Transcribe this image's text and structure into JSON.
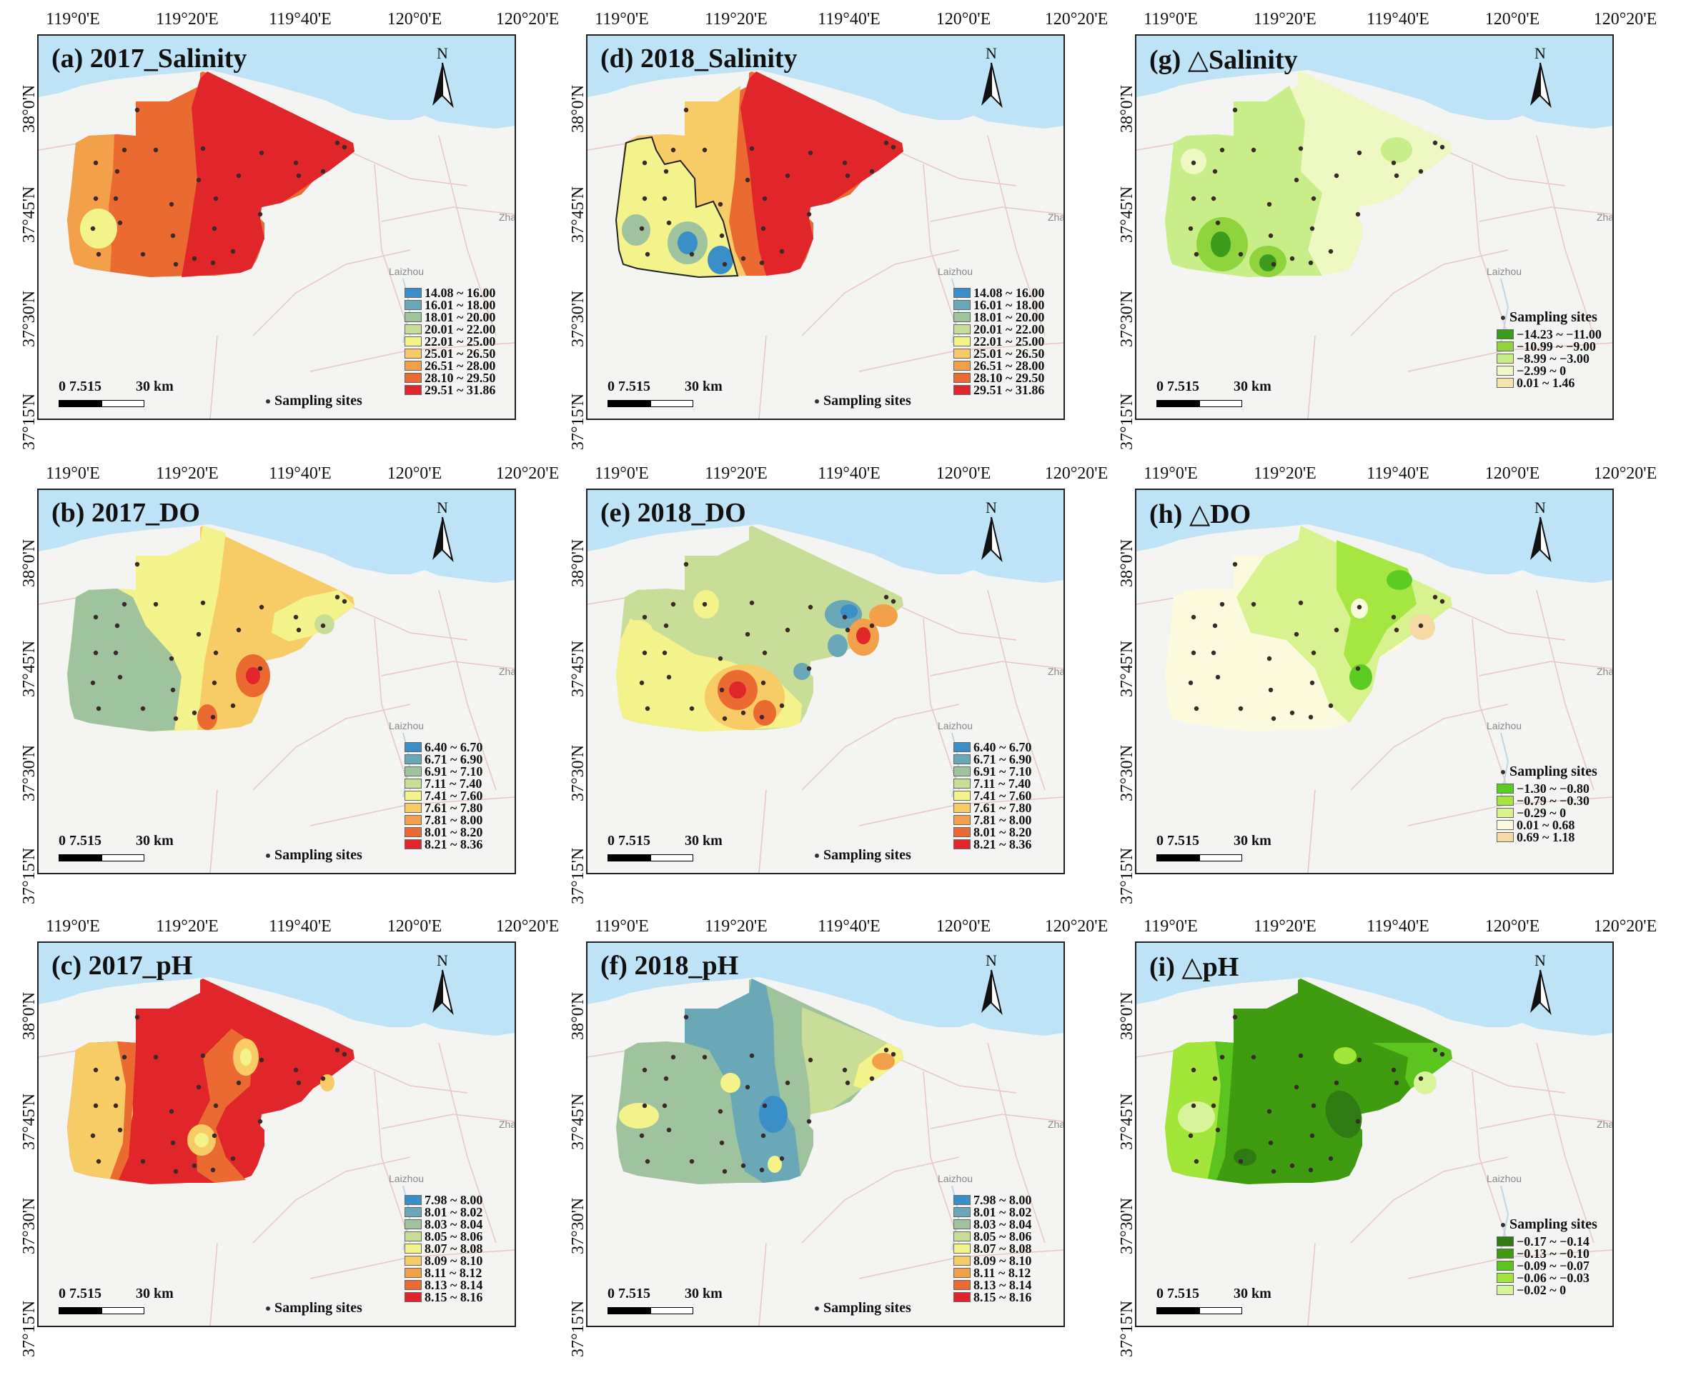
{
  "axes": {
    "lon_labels": [
      "119°0'E",
      "119°20'E",
      "119°40'E",
      "120°0'E",
      "120°20'E"
    ],
    "lat_labels": [
      "38°0'N",
      "37°45'N",
      "37°30'N",
      "37°15'N"
    ]
  },
  "common": {
    "north_label": "N",
    "scale_nums": "0 7.515",
    "scale_km": "30 km",
    "sites_label": "Sampling sites",
    "city_label": "Laizhou",
    "city_label_2": "Zha"
  },
  "panels": [
    {
      "id": "a",
      "title": "(a) 2017_Salinity",
      "variable": "salinity",
      "year": "2017",
      "legend": [
        "14.08 ~ 16.00",
        "16.01 ~ 18.00",
        "18.01 ~ 20.00",
        "20.01 ~ 22.00",
        "22.01 ~ 25.00",
        "25.01 ~ 26.50",
        "26.51 ~ 28.00",
        "28.10 ~ 29.50",
        "29.51 ~ 31.86"
      ],
      "legend_colors": [
        "#3a8fc9",
        "#6aa8b8",
        "#9fc39d",
        "#c8dd97",
        "#f4f28a",
        "#f7cb66",
        "#f2a049",
        "#ea6a32",
        "#e0262a"
      ]
    },
    {
      "id": "d",
      "title": "(d) 2018_Salinity",
      "variable": "salinity",
      "year": "2018",
      "legend": [
        "14.08 ~ 16.00",
        "16.01 ~ 18.00",
        "18.01 ~ 20.00",
        "20.01 ~ 22.00",
        "22.01 ~ 25.00",
        "25.01 ~ 26.50",
        "26.51 ~ 28.00",
        "28.10 ~ 29.50",
        "29.51 ~ 31.86"
      ],
      "legend_colors": [
        "#3a8fc9",
        "#6aa8b8",
        "#9fc39d",
        "#c8dd97",
        "#f4f28a",
        "#f7cb66",
        "#f2a049",
        "#ea6a32",
        "#e0262a"
      ]
    },
    {
      "id": "g",
      "title": "△Salinity",
      "title_prefix": "(g) ",
      "variable": "delta-salinity",
      "year": "",
      "legend": [
        "−14.23 ~ −11.00",
        "−10.99 ~ −9.00",
        "−8.99 ~ −3.00",
        "−2.99 ~ 0",
        "0.01 ~ 1.46"
      ],
      "legend_colors": [
        "#3c9c1e",
        "#8fd43c",
        "#c8ee8a",
        "#eef8c2",
        "#f6e4b0"
      ]
    },
    {
      "id": "b",
      "title": "(b) 2017_DO",
      "variable": "DO",
      "year": "2017",
      "legend": [
        "6.40 ~ 6.70",
        "6.71 ~ 6.90",
        "6.91 ~ 7.10",
        "7.11 ~ 7.40",
        "7.41 ~ 7.60",
        "7.61 ~ 7.80",
        "7.81 ~ 8.00",
        "8.01 ~ 8.20",
        "8.21 ~ 8.36"
      ],
      "legend_colors": [
        "#3a8fc9",
        "#6aa8b8",
        "#9fc39d",
        "#c8dd97",
        "#f4f28a",
        "#f7cb66",
        "#f2a049",
        "#ea6a32",
        "#e0262a"
      ]
    },
    {
      "id": "e",
      "title": "(e) 2018_DO",
      "variable": "DO",
      "year": "2018",
      "legend": [
        "6.40 ~ 6.70",
        "6.71 ~ 6.90",
        "6.91 ~ 7.10",
        "7.11 ~ 7.40",
        "7.41 ~ 7.60",
        "7.61 ~ 7.80",
        "7.81 ~ 8.00",
        "8.01 ~ 8.20",
        "8.21 ~ 8.36"
      ],
      "legend_colors": [
        "#3a8fc9",
        "#6aa8b8",
        "#9fc39d",
        "#c8dd97",
        "#f4f28a",
        "#f7cb66",
        "#f2a049",
        "#ea6a32",
        "#e0262a"
      ]
    },
    {
      "id": "h",
      "title": "△DO",
      "title_prefix": "(h) ",
      "variable": "delta-DO",
      "year": "",
      "legend": [
        "−1.30 ~ −0.80",
        "−0.79 ~ −0.30",
        "−0.29 ~ 0",
        "0.01 ~ 0.68",
        "0.69 ~ 1.18"
      ],
      "legend_colors": [
        "#5ccc22",
        "#a6e640",
        "#d8f290",
        "#fbfadc",
        "#f4d9a2"
      ]
    },
    {
      "id": "c",
      "title": "(c) 2017_pH",
      "variable": "pH",
      "year": "2017",
      "legend": [
        "7.98 ~ 8.00",
        "8.01 ~ 8.02",
        "8.03 ~ 8.04",
        "8.05 ~ 8.06",
        "8.07 ~ 8.08",
        "8.09 ~ 8.10",
        "8.11 ~ 8.12",
        "8.13 ~ 8.14",
        "8.15 ~ 8.16"
      ],
      "legend_colors": [
        "#3a8fc9",
        "#6aa8b8",
        "#9fc39d",
        "#c8dd97",
        "#f4f28a",
        "#f7cb66",
        "#f2a049",
        "#ea6a32",
        "#e0262a"
      ]
    },
    {
      "id": "f",
      "title": "(f) 2018_pH",
      "variable": "pH",
      "year": "2018",
      "legend": [
        "7.98 ~ 8.00",
        "8.01 ~ 8.02",
        "8.03 ~ 8.04",
        "8.05 ~ 8.06",
        "8.07 ~ 8.08",
        "8.09 ~ 8.10",
        "8.11 ~ 8.12",
        "8.13 ~ 8.14",
        "8.15 ~ 8.16"
      ],
      "legend_colors": [
        "#3a8fc9",
        "#6aa8b8",
        "#9fc39d",
        "#c8dd97",
        "#f4f28a",
        "#f7cb66",
        "#f2a049",
        "#ea6a32",
        "#e0262a"
      ]
    },
    {
      "id": "i",
      "title": "△pH",
      "title_prefix": "(i) ",
      "variable": "delta-pH",
      "year": "",
      "legend": [
        "−0.17 ~ −0.14",
        "−0.13 ~ −0.10",
        "−0.09 ~ −0.07",
        "−0.06 ~ −0.03",
        "−0.02 ~ 0"
      ],
      "legend_colors": [
        "#2f7a12",
        "#3f9c10",
        "#5bc41e",
        "#a3e63a",
        "#d8f49a"
      ]
    }
  ],
  "colors": {
    "sea": "#bfe3f6",
    "land": "#f3f3f1",
    "boundary": "#333333"
  }
}
